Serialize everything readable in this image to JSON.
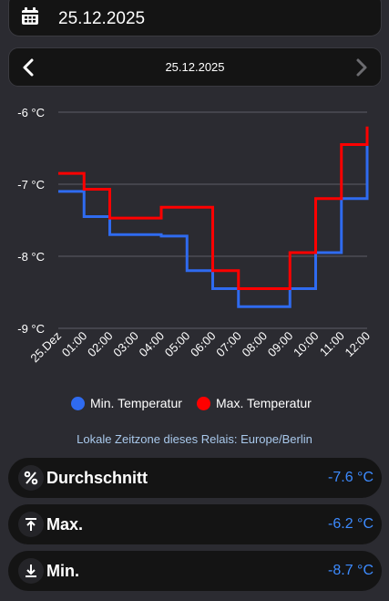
{
  "date_picker": {
    "value": "25.12.2025",
    "icon": "calendar-icon"
  },
  "day_nav": {
    "title": "25.12.2025",
    "prev_icon": "chevron-left-icon",
    "next_icon": "chevron-right-icon",
    "next_disabled": true
  },
  "chart_data": {
    "type": "line",
    "step": true,
    "y_axis": {
      "min": -9,
      "max": -6,
      "ticks": [
        "-6 °C",
        "-7 °C",
        "-8 °C",
        "-9 °C"
      ],
      "grid": true
    },
    "x_axis": {
      "ticks": [
        "25.Dez",
        "01:00",
        "02:00",
        "03:00",
        "04:00",
        "05:00",
        "06:00",
        "07:00",
        "08:00",
        "09:00",
        "10:00",
        "11:00",
        "12:00"
      ]
    },
    "series": [
      {
        "name": "Min. Temperatur",
        "color": "#2f6bf0",
        "values": [
          -7.1,
          -7.45,
          -7.7,
          -7.7,
          -7.72,
          -8.2,
          -8.45,
          -8.7,
          -8.7,
          -8.45,
          -7.95,
          -7.2,
          -6.45
        ]
      },
      {
        "name": "Max. Temperatur",
        "color": "#ff0000",
        "values": [
          -6.85,
          -7.07,
          -7.47,
          -7.47,
          -7.32,
          -7.32,
          -8.2,
          -8.45,
          -8.45,
          -7.95,
          -7.2,
          -6.45,
          -6.2
        ]
      }
    ],
    "legend_position": "bottom"
  },
  "timezone_note": "Lokale Zeitzone dieses Relais: Europe/Berlin",
  "stats": [
    {
      "label": "Durchschnitt",
      "value": "-7.6 °C",
      "icon": "percent-icon"
    },
    {
      "label": "Max.",
      "value": "-6.2 °C",
      "icon": "arrow-up-bar-icon"
    },
    {
      "label": "Min.",
      "value": "-8.7 °C",
      "icon": "arrow-down-bar-icon"
    }
  ]
}
